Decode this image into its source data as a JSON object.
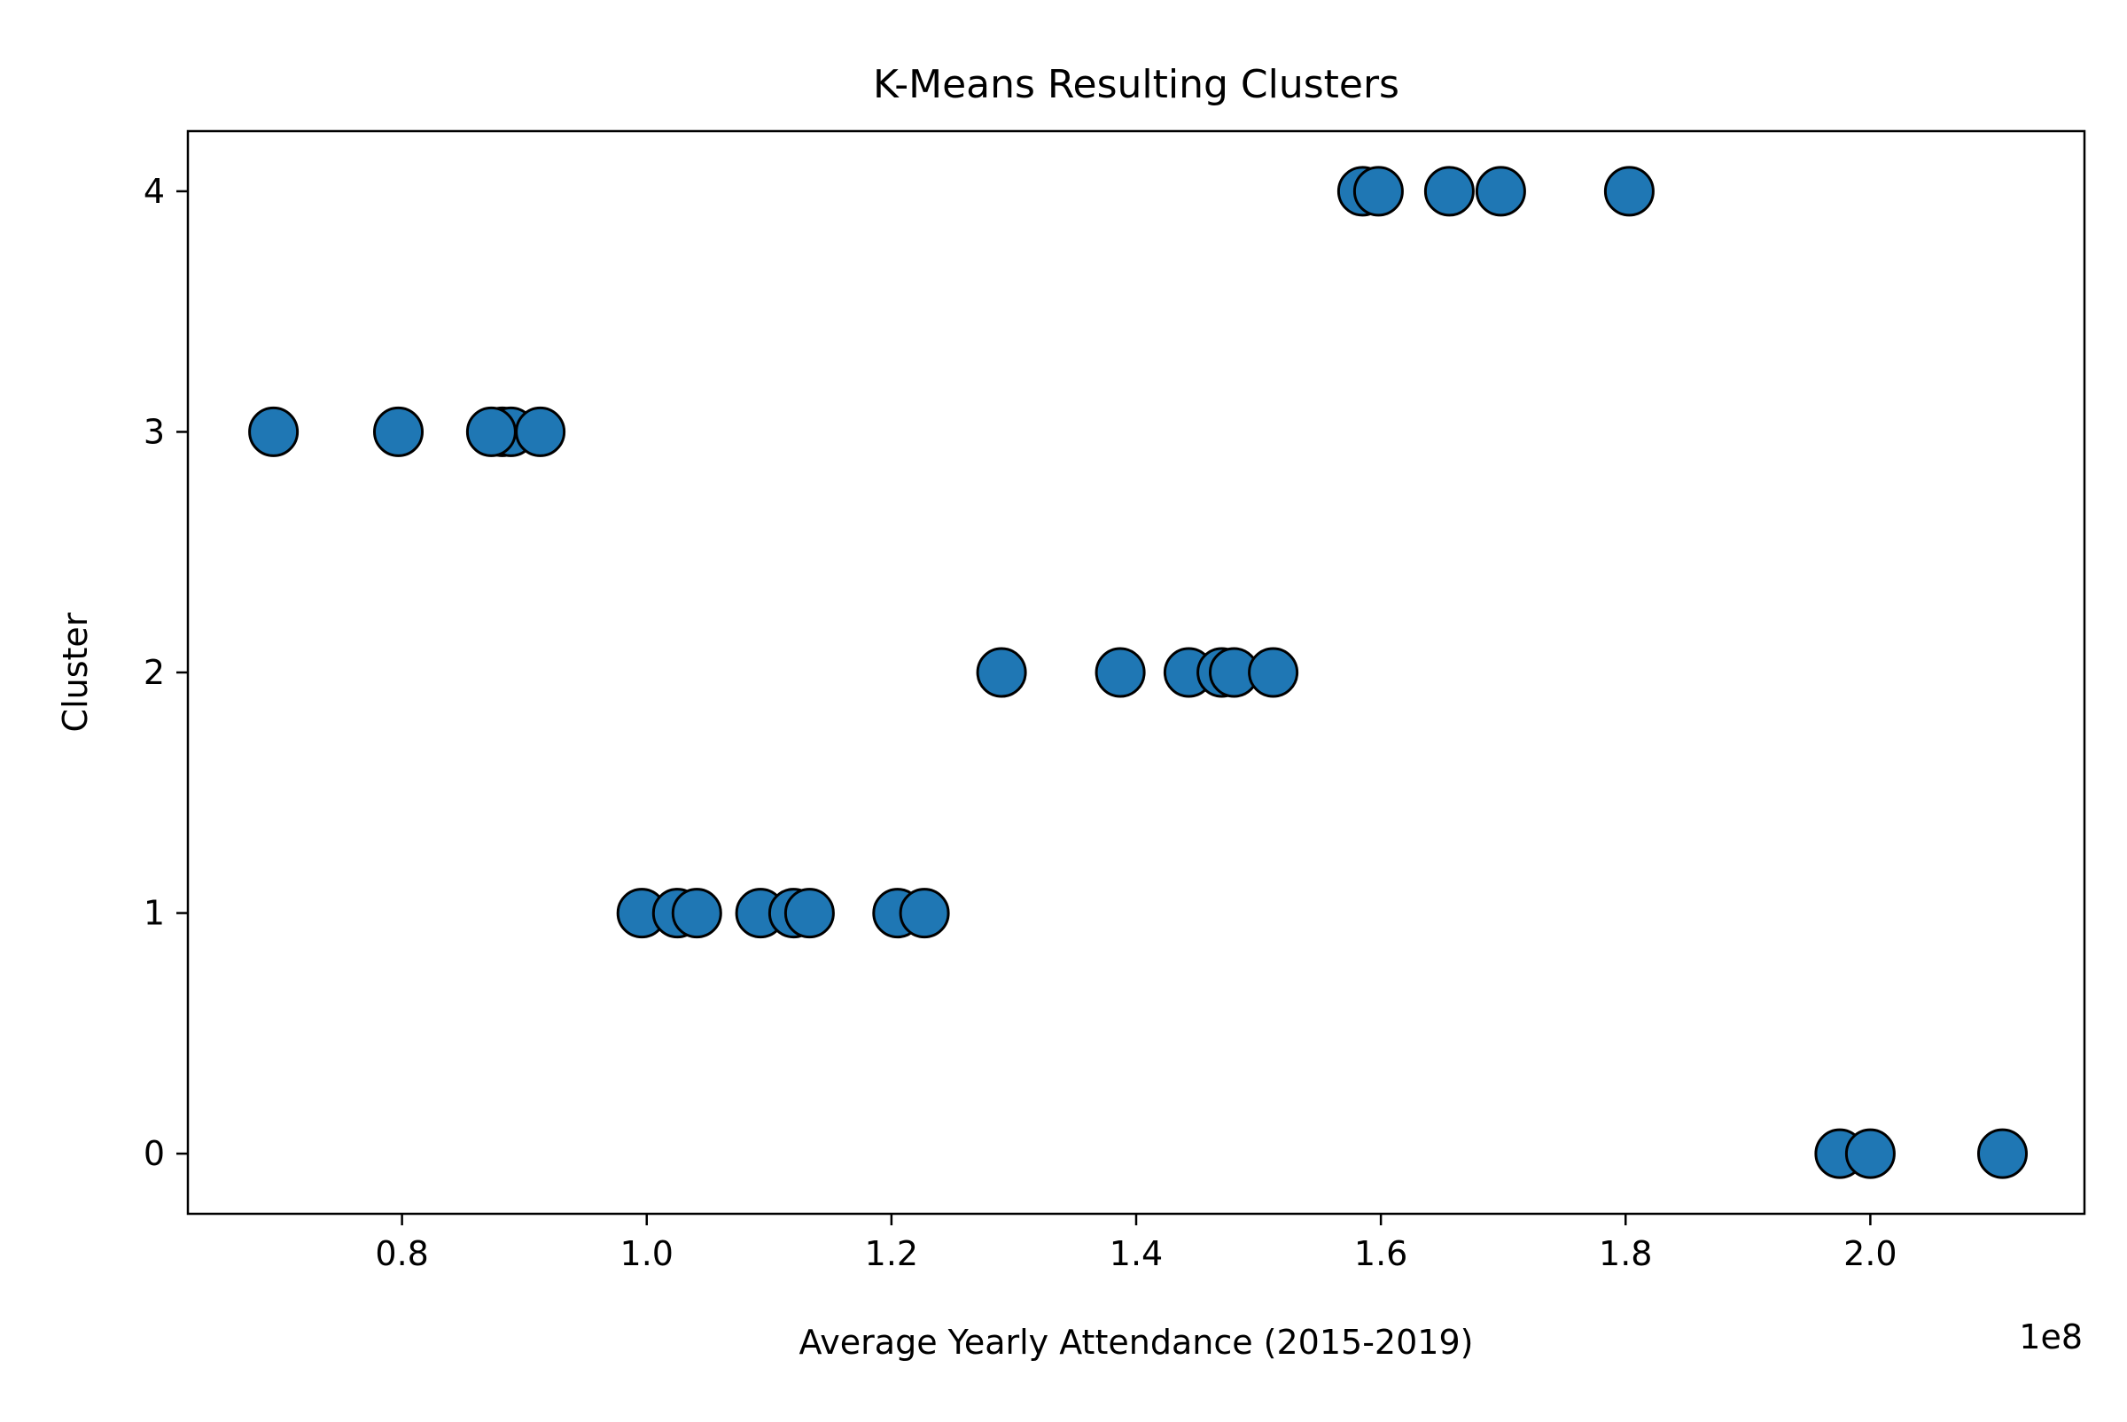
{
  "chart_data": {
    "type": "scatter",
    "title": "K-Means Resulting Clusters",
    "xlabel": "Average Yearly Attendance (2015-2019)",
    "ylabel": "Cluster",
    "x_offset_label": "1e8",
    "xlim": [
      0.625,
      2.175
    ],
    "ylim": [
      -0.25,
      4.25
    ],
    "x_ticks": [
      {
        "value": 0.8,
        "label": "0.8"
      },
      {
        "value": 1.0,
        "label": "1.0"
      },
      {
        "value": 1.2,
        "label": "1.2"
      },
      {
        "value": 1.4,
        "label": "1.4"
      },
      {
        "value": 1.6,
        "label": "1.6"
      },
      {
        "value": 1.8,
        "label": "1.8"
      },
      {
        "value": 2.0,
        "label": "2.0"
      }
    ],
    "y_ticks": [
      {
        "value": 0,
        "label": "0"
      },
      {
        "value": 1,
        "label": "1"
      },
      {
        "value": 2,
        "label": "2"
      },
      {
        "value": 3,
        "label": "3"
      },
      {
        "value": 4,
        "label": "4"
      }
    ],
    "grid": false,
    "marker_color": "#1f77b4",
    "marker_edge_color": "#000000",
    "points": [
      {
        "x": 1.585,
        "y": 4
      },
      {
        "x": 1.598,
        "y": 4
      },
      {
        "x": 1.656,
        "y": 4
      },
      {
        "x": 1.698,
        "y": 4
      },
      {
        "x": 1.803,
        "y": 4
      },
      {
        "x": 0.695,
        "y": 3
      },
      {
        "x": 0.797,
        "y": 3
      },
      {
        "x": 0.882,
        "y": 3
      },
      {
        "x": 0.889,
        "y": 3
      },
      {
        "x": 0.873,
        "y": 3
      },
      {
        "x": 0.913,
        "y": 3
      },
      {
        "x": 1.29,
        "y": 2
      },
      {
        "x": 1.387,
        "y": 2
      },
      {
        "x": 1.443,
        "y": 2
      },
      {
        "x": 1.47,
        "y": 2
      },
      {
        "x": 1.48,
        "y": 2
      },
      {
        "x": 1.512,
        "y": 2
      },
      {
        "x": 0.996,
        "y": 1
      },
      {
        "x": 1.025,
        "y": 1
      },
      {
        "x": 1.041,
        "y": 1
      },
      {
        "x": 1.093,
        "y": 1
      },
      {
        "x": 1.12,
        "y": 1
      },
      {
        "x": 1.133,
        "y": 1
      },
      {
        "x": 1.205,
        "y": 1
      },
      {
        "x": 1.227,
        "y": 1
      },
      {
        "x": 1.975,
        "y": 0
      },
      {
        "x": 2.0,
        "y": 0
      },
      {
        "x": 2.108,
        "y": 0
      }
    ]
  }
}
